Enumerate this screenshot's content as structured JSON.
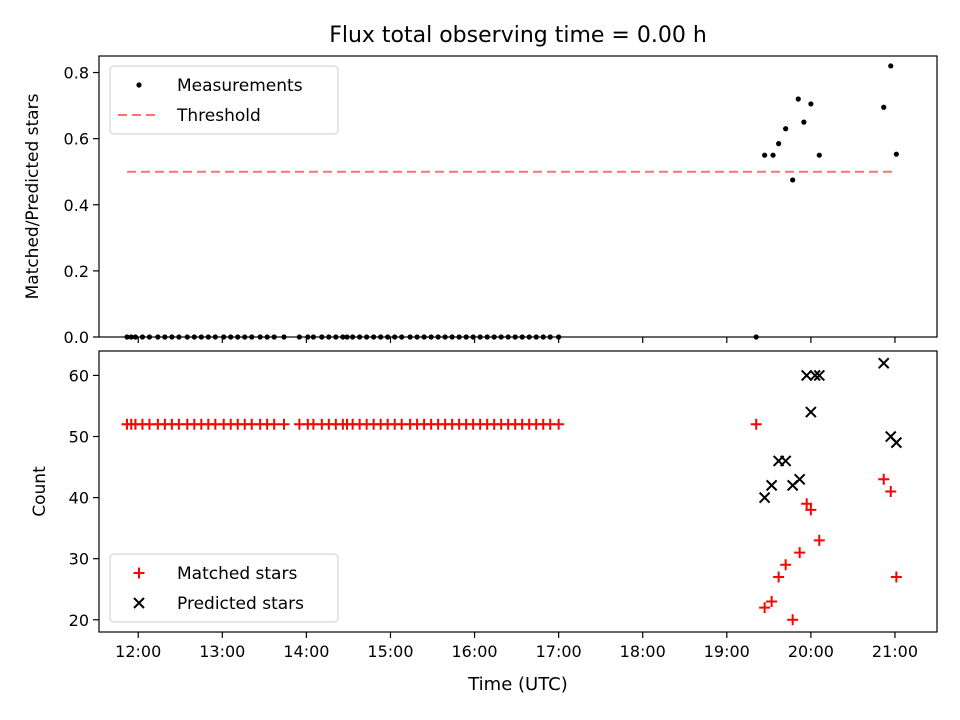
{
  "figure": {
    "title": "Flux total observing time = 0.00 h",
    "xlabel": "Time (UTC)"
  },
  "chart_data": [
    {
      "type": "scatter",
      "title": "Flux total observing time = 0.00 h",
      "xlabel": "",
      "ylabel": "Matched/Predicted stars",
      "xlim": [
        "11:32",
        "21:30"
      ],
      "ylim": [
        0,
        0.85
      ],
      "xticks": [
        "12:00",
        "13:00",
        "14:00",
        "15:00",
        "16:00",
        "17:00",
        "18:00",
        "19:00",
        "20:00",
        "21:00"
      ],
      "yticks": [
        0.0,
        0.2,
        0.4,
        0.6,
        0.8
      ],
      "yticklabels": [
        "0.0",
        "0.2",
        "0.4",
        "0.6",
        "0.8"
      ],
      "legend_position": "upper-left",
      "series": [
        {
          "name": "Measurements",
          "kind": "scatter",
          "marker": "dot",
          "color": "#000000",
          "x": [
            "11:52",
            "11:55",
            "11:58",
            "12:03",
            "12:08",
            "12:14",
            "12:19",
            "12:24",
            "12:29",
            "12:35",
            "12:40",
            "12:45",
            "12:50",
            "12:55",
            "13:01",
            "13:06",
            "13:11",
            "13:16",
            "13:21",
            "13:27",
            "13:32",
            "13:37",
            "13:44",
            "13:55",
            "14:01",
            "14:05",
            "14:11",
            "14:16",
            "14:21",
            "14:26",
            "14:29",
            "14:33",
            "14:38",
            "14:43",
            "14:48",
            "14:53",
            "14:58",
            "15:03",
            "15:08",
            "15:14",
            "15:19",
            "15:24",
            "15:29",
            "15:34",
            "15:39",
            "15:44",
            "15:49",
            "15:54",
            "15:59",
            "16:04",
            "16:09",
            "16:14",
            "16:19",
            "16:24",
            "16:29",
            "16:34",
            "16:39",
            "16:44",
            "16:49",
            "16:54",
            "17:00",
            "19:21",
            "19:27",
            "19:33",
            "19:37",
            "19:42",
            "19:47",
            "19:51",
            "19:55",
            "20:00",
            "20:06",
            "20:52",
            "20:57",
            "21:01"
          ],
          "y": [
            0,
            0,
            0,
            0,
            0,
            0,
            0,
            0,
            0,
            0,
            0,
            0,
            0,
            0,
            0,
            0,
            0,
            0,
            0,
            0,
            0,
            0,
            0,
            0,
            0,
            0,
            0,
            0,
            0,
            0,
            0,
            0,
            0,
            0,
            0,
            0,
            0,
            0,
            0,
            0,
            0,
            0,
            0,
            0,
            0,
            0,
            0,
            0,
            0,
            0,
            0,
            0,
            0,
            0,
            0,
            0,
            0,
            0,
            0,
            0,
            0,
            0,
            0.55,
            0.55,
            0.585,
            0.63,
            0.475,
            0.72,
            0.65,
            0.705,
            0.55,
            0.695,
            0.82,
            0.553
          ]
        },
        {
          "name": "Threshold",
          "kind": "line",
          "linestyle": "dashed",
          "color": "#ff7070",
          "x": [
            "11:52",
            "21:00"
          ],
          "y": [
            0.5,
            0.5
          ]
        }
      ]
    },
    {
      "type": "scatter",
      "xlabel": "Time (UTC)",
      "ylabel": "Count",
      "xlim": [
        "11:32",
        "21:30"
      ],
      "ylim": [
        18,
        64
      ],
      "xticks": [
        "12:00",
        "13:00",
        "14:00",
        "15:00",
        "16:00",
        "17:00",
        "18:00",
        "19:00",
        "20:00",
        "21:00"
      ],
      "yticks": [
        20,
        30,
        40,
        50,
        60
      ],
      "yticklabels": [
        "20",
        "30",
        "40",
        "50",
        "60"
      ],
      "legend_position": "lower-left",
      "series": [
        {
          "name": "Matched stars",
          "kind": "scatter",
          "marker": "plus",
          "color": "#ff0000",
          "x": [
            "11:52",
            "11:55",
            "11:58",
            "12:03",
            "12:08",
            "12:14",
            "12:19",
            "12:24",
            "12:29",
            "12:35",
            "12:40",
            "12:45",
            "12:50",
            "12:55",
            "13:01",
            "13:06",
            "13:11",
            "13:16",
            "13:21",
            "13:27",
            "13:32",
            "13:37",
            "13:44",
            "13:55",
            "14:01",
            "14:05",
            "14:11",
            "14:16",
            "14:21",
            "14:26",
            "14:29",
            "14:33",
            "14:38",
            "14:43",
            "14:48",
            "14:53",
            "14:58",
            "15:03",
            "15:08",
            "15:14",
            "15:19",
            "15:24",
            "15:29",
            "15:34",
            "15:39",
            "15:44",
            "15:49",
            "15:54",
            "15:59",
            "16:04",
            "16:09",
            "16:14",
            "16:19",
            "16:24",
            "16:29",
            "16:34",
            "16:39",
            "16:44",
            "16:49",
            "16:54",
            "17:00",
            "19:21",
            "19:27",
            "19:32",
            "19:37",
            "19:42",
            "19:47",
            "19:52",
            "19:57",
            "20:00",
            "20:06",
            "20:52",
            "20:57",
            "21:01"
          ],
          "y": [
            52,
            52,
            52,
            52,
            52,
            52,
            52,
            52,
            52,
            52,
            52,
            52,
            52,
            52,
            52,
            52,
            52,
            52,
            52,
            52,
            52,
            52,
            52,
            52,
            52,
            52,
            52,
            52,
            52,
            52,
            52,
            52,
            52,
            52,
            52,
            52,
            52,
            52,
            52,
            52,
            52,
            52,
            52,
            52,
            52,
            52,
            52,
            52,
            52,
            52,
            52,
            52,
            52,
            52,
            52,
            52,
            52,
            52,
            52,
            52,
            52,
            52,
            22,
            23,
            27,
            29,
            20,
            31,
            39,
            38,
            33,
            43,
            41,
            27
          ]
        },
        {
          "name": "Predicted stars",
          "kind": "scatter",
          "marker": "x",
          "color": "#000000",
          "x": [
            "19:27",
            "19:32",
            "19:37",
            "19:42",
            "19:47",
            "19:52",
            "19:57",
            "20:00",
            "20:03",
            "20:06",
            "20:52",
            "20:57",
            "21:01"
          ],
          "y": [
            40,
            42,
            46,
            46,
            42,
            43,
            60,
            54,
            60,
            60,
            62,
            50,
            49
          ]
        }
      ]
    }
  ]
}
